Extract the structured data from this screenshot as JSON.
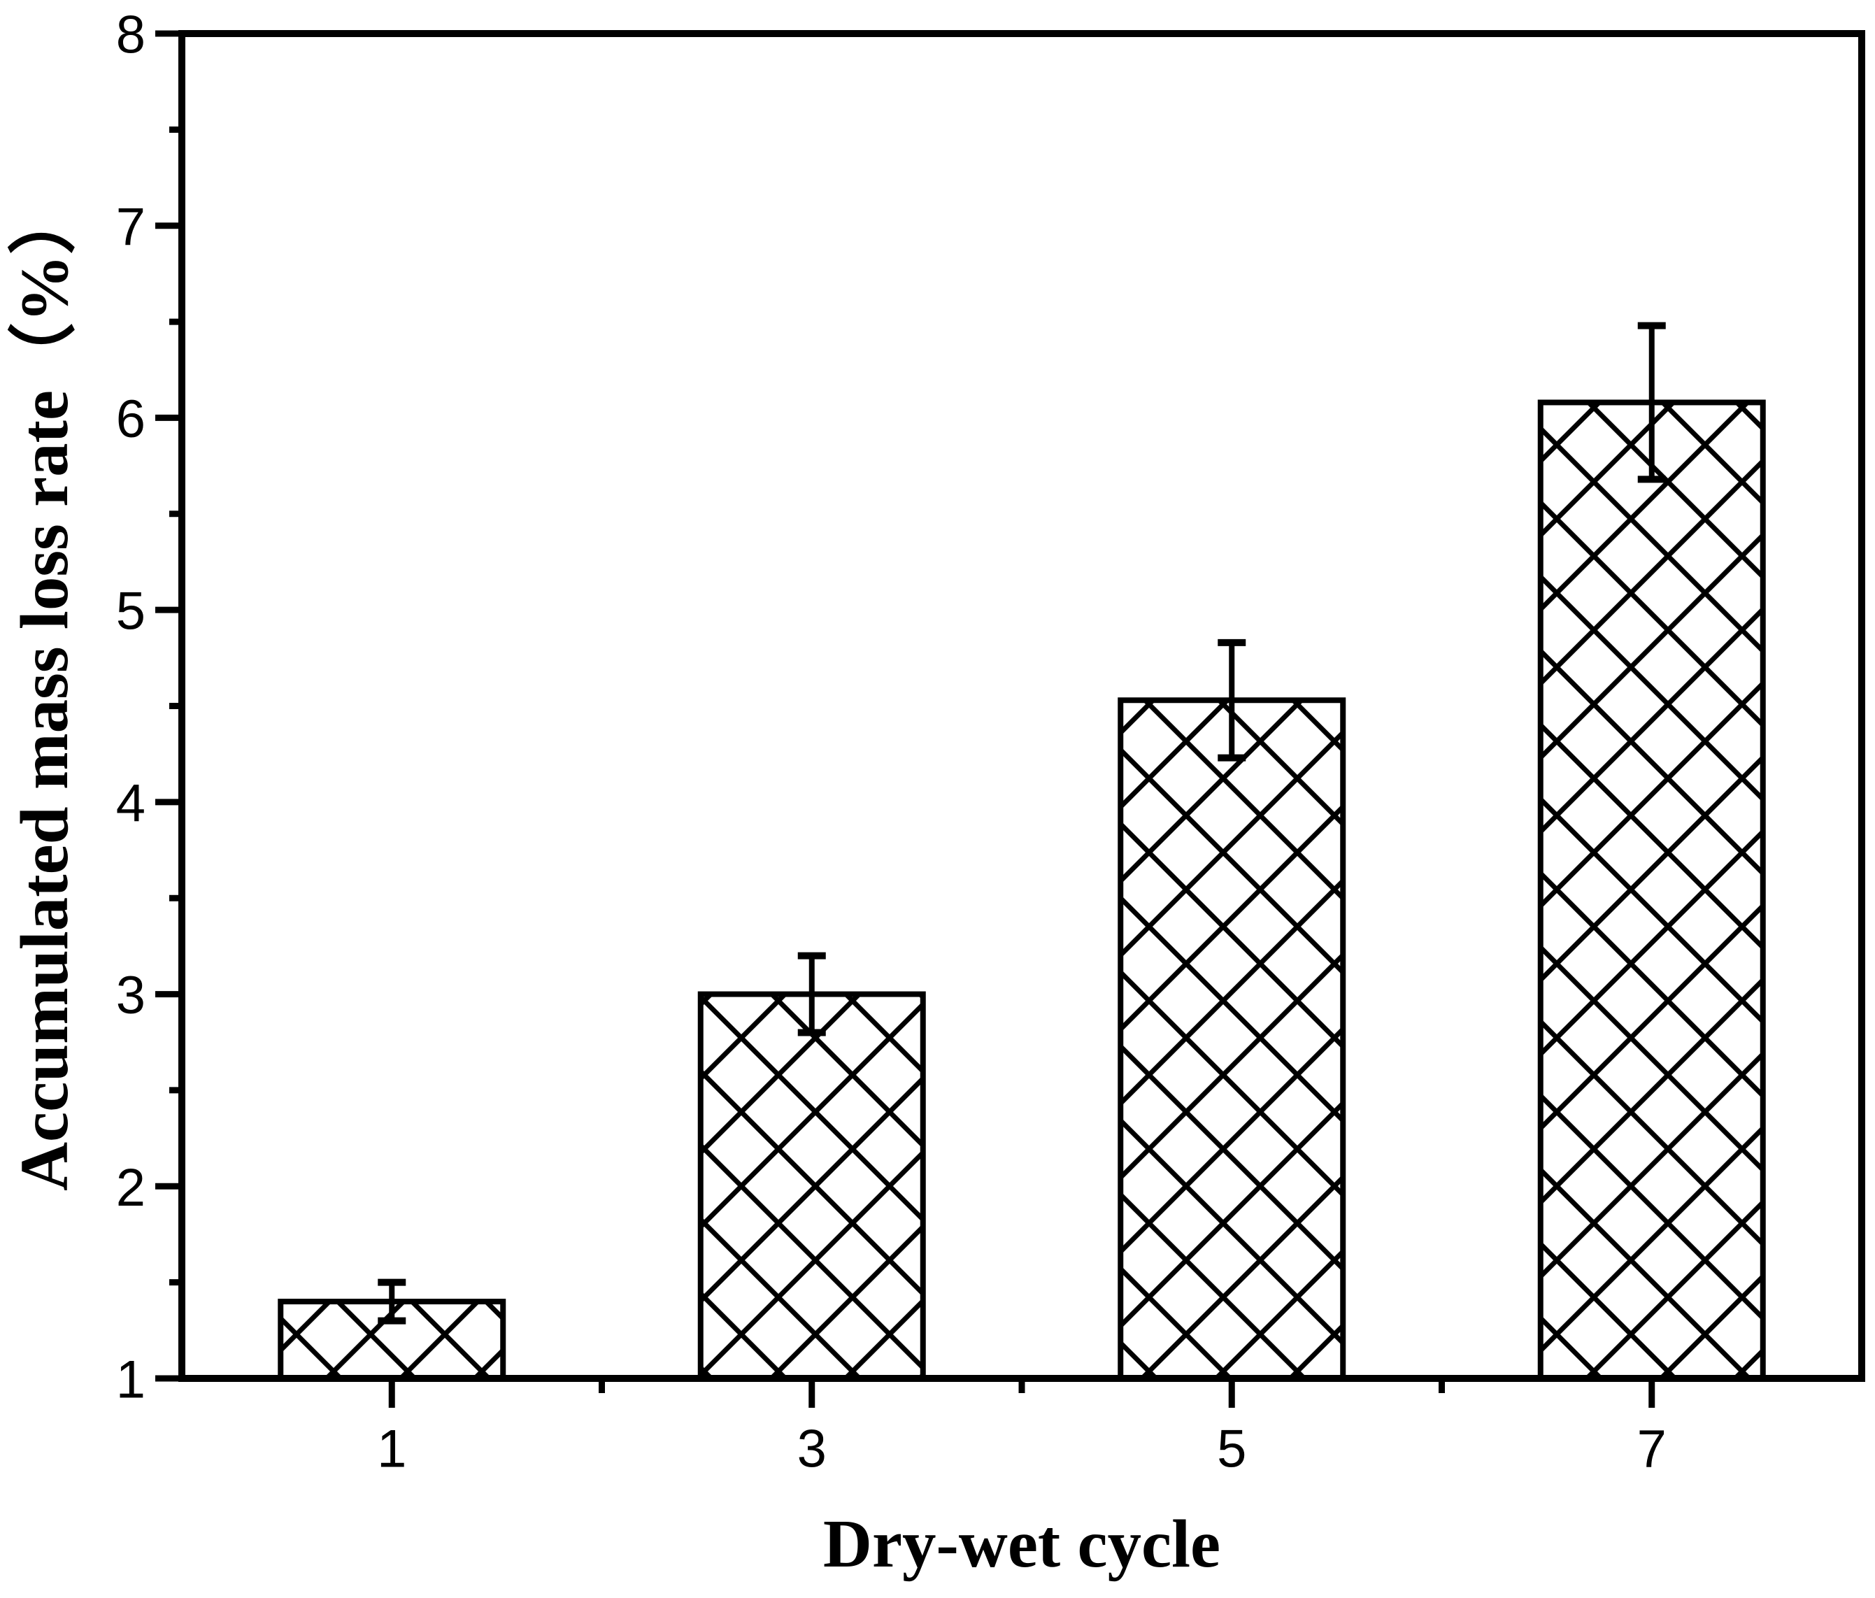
{
  "figure": {
    "background": "#ffffff",
    "frame_color": "#000000"
  },
  "chart_data": {
    "type": "bar",
    "title": "",
    "xlabel": "Dry-wet cycle",
    "ylabel": "Accumulated mass loss rate（%）",
    "categories": [
      "1",
      "3",
      "5",
      "7"
    ],
    "values": [
      1.4,
      3.0,
      4.53,
      6.08
    ],
    "error_bars": [
      0.1,
      0.2,
      0.3,
      0.4
    ],
    "ylim": [
      1,
      8
    ],
    "y_major_step": 1,
    "y_minor_step": 0.5,
    "y_tick_labels": [
      "1",
      "2",
      "3",
      "4",
      "5",
      "6",
      "7",
      "8"
    ],
    "grid": false,
    "legend": "none",
    "bar_fill": "white-crosshatch",
    "bar_border_color": "#000000",
    "hatch_color": "#000000",
    "error_bar_color": "#000000",
    "tick_direction": "out"
  }
}
